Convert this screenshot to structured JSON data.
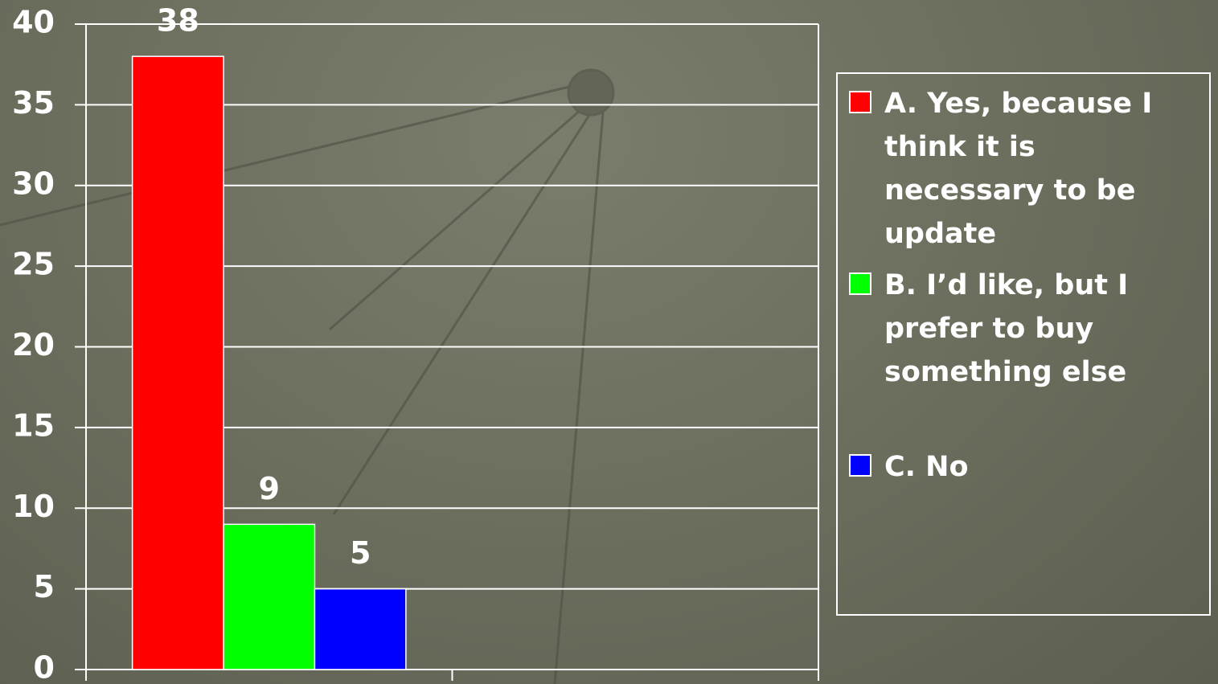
{
  "chart_data": {
    "type": "bar",
    "categories": [
      null,
      null
    ],
    "series": [
      {
        "name": "A. Yes, because I think it is necessary to be update",
        "color": "#ff0000",
        "values": [
          38,
          null
        ]
      },
      {
        "name": "B. I’d like, but I prefer to buy something else",
        "color": "#00ff00",
        "values": [
          9,
          null
        ]
      },
      {
        "name": "C. No",
        "color": "#0000ff",
        "values": [
          5,
          null
        ]
      }
    ],
    "ylim": [
      0,
      40
    ],
    "yticks": [
      0,
      5,
      10,
      15,
      20,
      25,
      30,
      35,
      40
    ],
    "grid": true,
    "legend": "right"
  }
}
